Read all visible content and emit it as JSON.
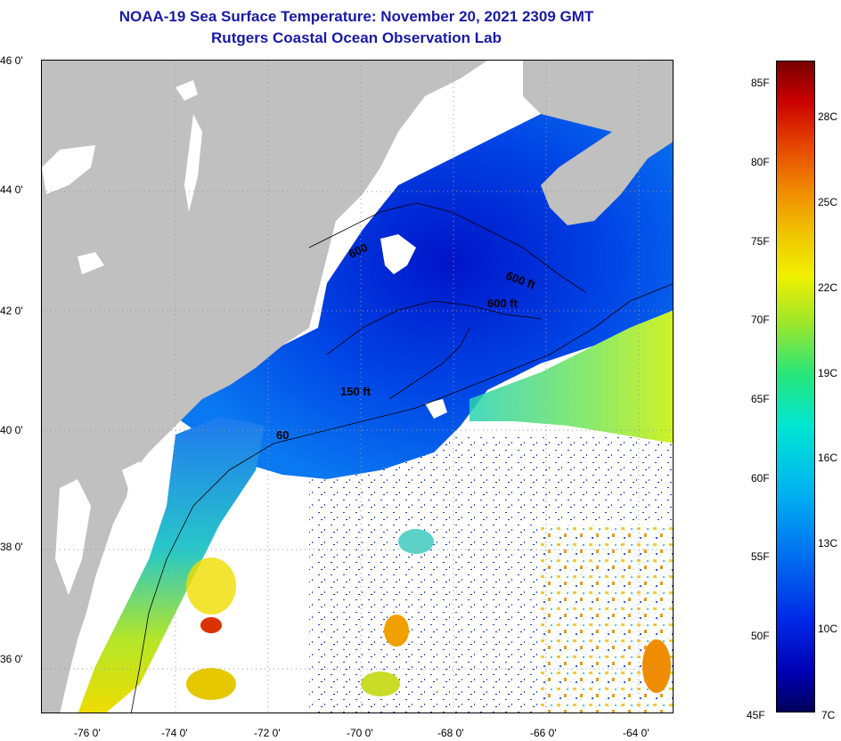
{
  "title": {
    "line1": "NOAA-19 Sea Surface Temperature:  November 20, 2021 2309 GMT",
    "line2": "Rutgers Coastal Ocean Observation Lab"
  },
  "axes": {
    "latitude_labels": [
      {
        "value": 46,
        "text": "46 0'"
      },
      {
        "value": 44,
        "text": "44 0'"
      },
      {
        "value": 42,
        "text": "42 0'"
      },
      {
        "value": 40,
        "text": "40 0'"
      },
      {
        "value": 38,
        "text": "38 0'"
      },
      {
        "value": 36,
        "text": "36 0'"
      }
    ],
    "longitude_labels": [
      {
        "value": -76,
        "text": "-76 0'"
      },
      {
        "value": -74,
        "text": "-74 0'"
      },
      {
        "value": -72,
        "text": "-72 0'"
      },
      {
        "value": -70,
        "text": "-70 0'"
      },
      {
        "value": -68,
        "text": "-68 0'"
      },
      {
        "value": -66,
        "text": "-66 0'"
      },
      {
        "value": -64,
        "text": "-64 0'"
      }
    ],
    "lat_range": [
      35.05,
      46.0
    ],
    "lon_range": [
      -76.6,
      -63.0
    ]
  },
  "contour_labels": [
    {
      "text": "600",
      "lon": -69.6,
      "lat": 42.95
    },
    {
      "text": "600 ft",
      "lon": -66.95,
      "lat": 42.55
    },
    {
      "text": "600 ft",
      "lon": -66.8,
      "lat": 42.17
    },
    {
      "text": "150 ft",
      "lon": -69.95,
      "lat": 40.65
    },
    {
      "text": "60",
      "lon": -71.0,
      "lat": 39.85
    }
  ],
  "colorbar": {
    "fahrenheit_labels": [
      {
        "value": 85,
        "text": "85F"
      },
      {
        "value": 80,
        "text": "80F"
      },
      {
        "value": 75,
        "text": "75F"
      },
      {
        "value": 70,
        "text": "70F"
      },
      {
        "value": 65,
        "text": "65F"
      },
      {
        "value": 60,
        "text": "60F"
      },
      {
        "value": 55,
        "text": "55F"
      },
      {
        "value": 50,
        "text": "50F"
      },
      {
        "value": 45,
        "text": "45F"
      }
    ],
    "celsius_labels": [
      {
        "value": 28,
        "text": "28C"
      },
      {
        "value": 25,
        "text": "25C"
      },
      {
        "value": 22,
        "text": "22C"
      },
      {
        "value": 19,
        "text": "19C"
      },
      {
        "value": 16,
        "text": "16C"
      },
      {
        "value": 13,
        "text": "13C"
      },
      {
        "value": 10,
        "text": "10C"
      },
      {
        "value": 7,
        "text": "7C"
      }
    ]
  },
  "colors": {
    "land": "#c0c0c0",
    "cloud": "#ffffff",
    "title": "#1a1aa6"
  }
}
